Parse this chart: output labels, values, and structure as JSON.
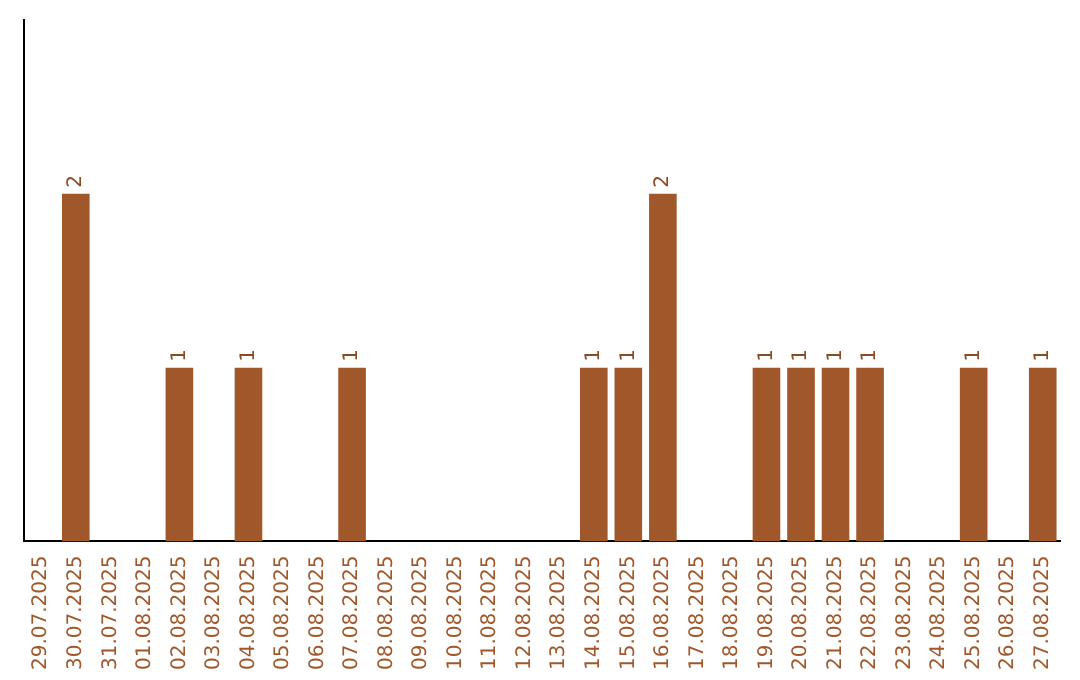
{
  "chart_data": {
    "type": "bar",
    "categories": [
      "29.07.2025",
      "30.07.2025",
      "31.07.2025",
      "01.08.2025",
      "02.08.2025",
      "03.08.2025",
      "04.08.2025",
      "05.08.2025",
      "06.08.2025",
      "07.08.2025",
      "08.08.2025",
      "09.08.2025",
      "10.08.2025",
      "11.08.2025",
      "12.08.2025",
      "13.08.2025",
      "14.08.2025",
      "15.08.2025",
      "16.08.2025",
      "17.08.2025",
      "18.08.2025",
      "19.08.2025",
      "20.08.2025",
      "21.08.2025",
      "22.08.2025",
      "23.08.2025",
      "24.08.2025",
      "25.08.2025",
      "26.08.2025",
      "27.08.2025"
    ],
    "values": [
      0,
      2,
      0,
      0,
      1,
      0,
      1,
      0,
      0,
      1,
      0,
      0,
      0,
      0,
      0,
      0,
      1,
      1,
      2,
      0,
      0,
      1,
      1,
      1,
      1,
      0,
      0,
      1,
      0,
      1
    ],
    "value_labels": [
      null,
      "2",
      null,
      null,
      "1",
      null,
      "1",
      null,
      null,
      "1",
      null,
      null,
      null,
      null,
      null,
      null,
      "1",
      "1",
      "2",
      null,
      null,
      "1",
      "1",
      "1",
      "1",
      null,
      null,
      "1",
      null,
      "1"
    ],
    "color": "#a0572a",
    "tick_labels": "x",
    "grid": false,
    "legend": false
  }
}
